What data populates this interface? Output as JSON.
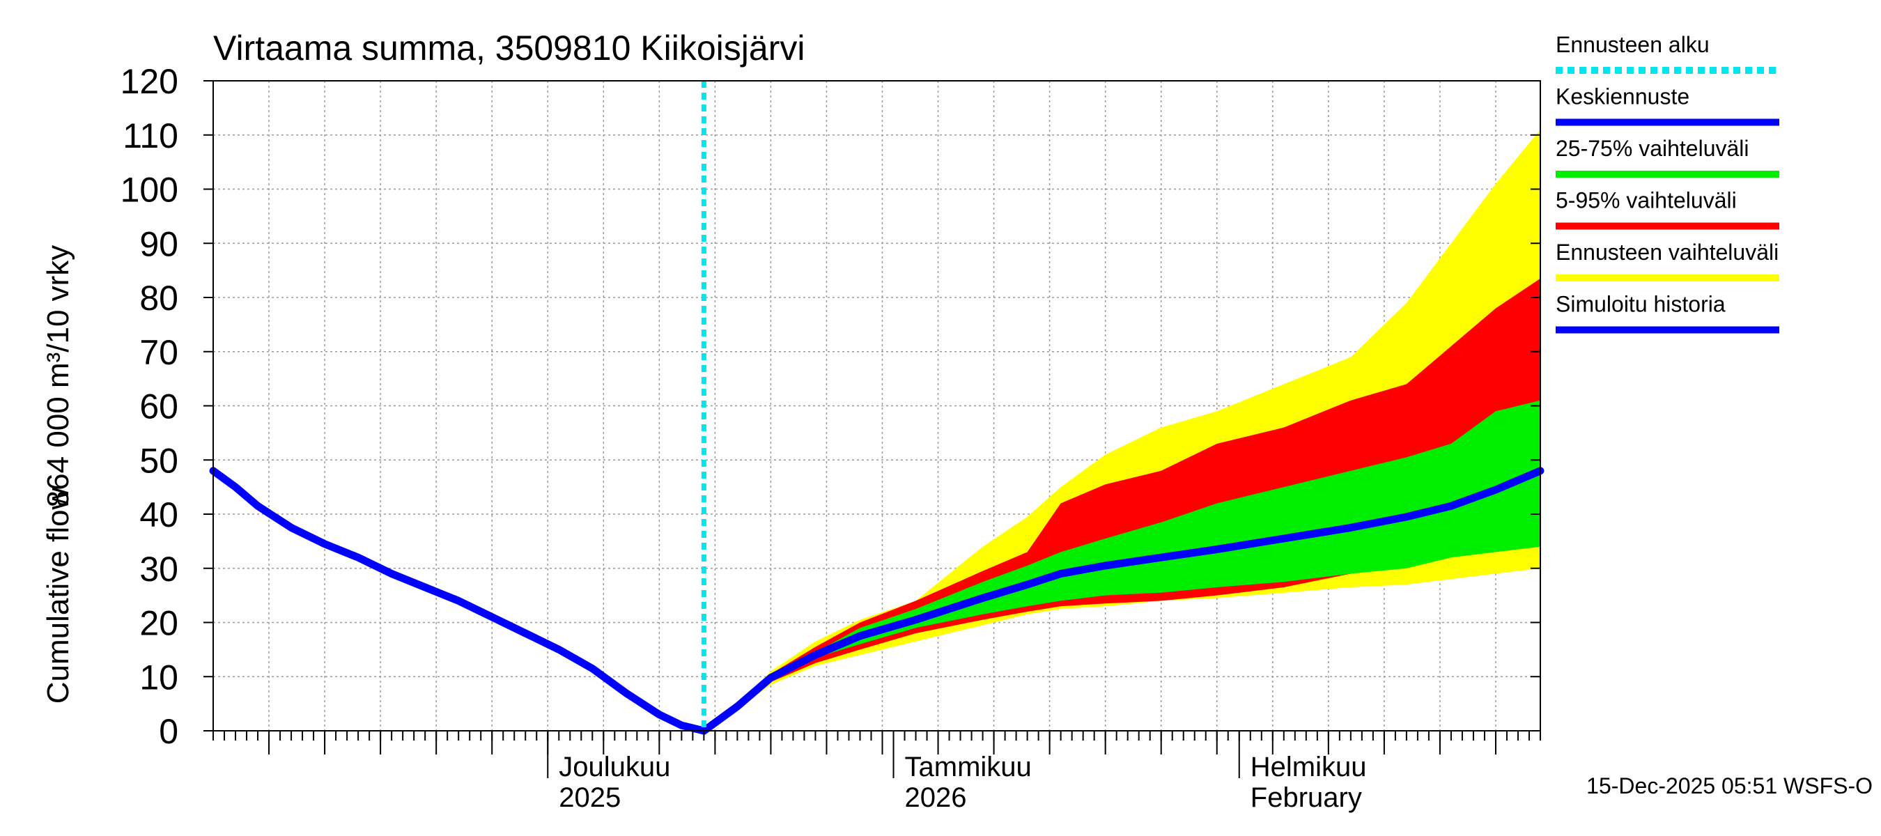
{
  "chart_data": {
    "type": "area",
    "title": "Virtaama summa, 3509810 Kiikoisjärvi",
    "ylabel_fi": "864 000 m³/10 vrky",
    "ylabel_en": "Cumulative flow",
    "ylim": [
      0,
      120
    ],
    "y_ticks": [
      0,
      10,
      20,
      30,
      40,
      50,
      60,
      70,
      80,
      90,
      100,
      110,
      120
    ],
    "y_tick_labels": [
      "0",
      "10",
      "20",
      "30",
      "40",
      "50",
      "60",
      "70",
      "80",
      "90",
      "100",
      "110",
      "120"
    ],
    "xlim": [
      "2025-11-01",
      "2026-02-28"
    ],
    "grid": true,
    "x_month_labels": [
      {
        "line1": "Joulukuu",
        "line2": "2025",
        "date": "2025-12-01"
      },
      {
        "line1": "Tammikuu",
        "line2": "2026",
        "date": "2026-01-01"
      },
      {
        "line1": "Helmikuu",
        "line2": "February",
        "date": "2026-02-01"
      }
    ],
    "forecast_start": "2025-12-15",
    "legend": [
      {
        "label": "Ennusteen alku",
        "color": "#00e5ee",
        "style": "dotted"
      },
      {
        "label": "Keskiennuste",
        "color": "#0000ff",
        "style": "solid"
      },
      {
        "label": "25-75% vaihteluväli",
        "color": "#00ee00",
        "style": "solid"
      },
      {
        "label": "5-95% vaihteluväli",
        "color": "#ff0000",
        "style": "solid"
      },
      {
        "label": "Ennusteen vaihteluväli",
        "color": "#ffff00",
        "style": "solid"
      },
      {
        "label": "Simuloitu historia",
        "color": "#0000ff",
        "style": "solid"
      }
    ],
    "colors": {
      "history": "#0000ff",
      "mean": "#0000ff",
      "band_25_75": "#00ee00",
      "band_5_95": "#ff0000",
      "band_full": "#ffff00",
      "forecast_start": "#00e5ee"
    },
    "history": {
      "x": [
        "2025-11-01",
        "2025-11-03",
        "2025-11-05",
        "2025-11-08",
        "2025-11-11",
        "2025-11-14",
        "2025-11-17",
        "2025-11-20",
        "2025-11-23",
        "2025-11-26",
        "2025-11-29",
        "2025-12-02",
        "2025-12-05",
        "2025-12-08",
        "2025-12-11",
        "2025-12-13",
        "2025-12-15"
      ],
      "y": [
        48,
        45,
        41.5,
        37.5,
        34.5,
        32,
        29,
        26.5,
        24,
        21,
        18,
        15,
        11.5,
        7,
        3,
        1,
        0
      ]
    },
    "series": [
      {
        "name": "Ennusteen vaihteluväli",
        "x": [
          "2025-12-15",
          "2025-12-18",
          "2025-12-21",
          "2025-12-25",
          "2025-12-29",
          "2026-01-03",
          "2026-01-09",
          "2026-01-13",
          "2026-01-16",
          "2026-01-20",
          "2026-01-25",
          "2026-01-30",
          "2026-02-05",
          "2026-02-11",
          "2026-02-16",
          "2026-02-20",
          "2026-02-24",
          "2026-02-28"
        ],
        "upper": [
          0,
          4.5,
          11,
          16.5,
          20.5,
          24,
          34,
          39.5,
          45,
          51,
          56,
          59,
          64,
          69,
          79,
          90,
          101,
          111
        ],
        "lower": [
          0,
          4,
          8.5,
          12,
          14,
          16.5,
          19.5,
          21.5,
          22.5,
          23,
          24,
          24.5,
          25.5,
          26.5,
          27,
          28,
          29,
          30
        ]
      },
      {
        "name": "5-95% vaihteluväli",
        "x": [
          "2025-12-15",
          "2025-12-18",
          "2025-12-21",
          "2025-12-25",
          "2025-12-29",
          "2026-01-03",
          "2026-01-09",
          "2026-01-13",
          "2026-01-16",
          "2026-01-20",
          "2026-01-25",
          "2026-01-30",
          "2026-02-05",
          "2026-02-11",
          "2026-02-16",
          "2026-02-20",
          "2026-02-24",
          "2026-02-28"
        ],
        "upper": [
          0,
          4.5,
          10.5,
          15.5,
          20,
          24,
          29.5,
          33,
          42,
          45.5,
          48,
          53,
          56,
          61,
          64,
          71,
          78,
          83.5
        ],
        "lower": [
          0,
          4.3,
          9,
          12.5,
          15,
          18,
          20.5,
          22,
          23,
          23.5,
          24,
          25,
          26.5,
          29,
          31.5,
          33,
          34.5,
          36.5
        ]
      },
      {
        "name": "25-75% vaihteluväli",
        "x": [
          "2025-12-15",
          "2025-12-18",
          "2025-12-21",
          "2025-12-25",
          "2025-12-29",
          "2026-01-03",
          "2026-01-09",
          "2026-01-13",
          "2026-01-16",
          "2026-01-20",
          "2026-01-25",
          "2026-01-30",
          "2026-02-05",
          "2026-02-11",
          "2026-02-16",
          "2026-02-20",
          "2026-02-24",
          "2026-02-28"
        ],
        "upper": [
          0,
          4.5,
          10,
          14.5,
          19,
          22.5,
          27.5,
          30.5,
          33,
          35.5,
          38.5,
          42,
          45,
          48,
          50.5,
          53,
          59,
          61
        ],
        "lower": [
          0,
          4.4,
          9.5,
          13.5,
          16,
          19,
          21.5,
          23,
          24,
          25,
          25.5,
          26.5,
          27.5,
          29,
          30,
          32,
          33,
          34
        ]
      },
      {
        "name": "Keskiennuste",
        "x": [
          "2025-12-15",
          "2025-12-18",
          "2025-12-21",
          "2025-12-25",
          "2025-12-29",
          "2026-01-03",
          "2026-01-09",
          "2026-01-13",
          "2026-01-16",
          "2026-01-20",
          "2026-01-25",
          "2026-01-30",
          "2026-02-05",
          "2026-02-11",
          "2026-02-16",
          "2026-02-20",
          "2026-02-24",
          "2026-02-28"
        ],
        "y": [
          0,
          4.5,
          9.8,
          14,
          17.5,
          20.5,
          24.5,
          27,
          29,
          30.5,
          32,
          33.5,
          35.5,
          37.5,
          39.5,
          41.5,
          44.5,
          48
        ]
      }
    ],
    "timestamp": "15-Dec-2025 05:51 WSFS-O"
  }
}
